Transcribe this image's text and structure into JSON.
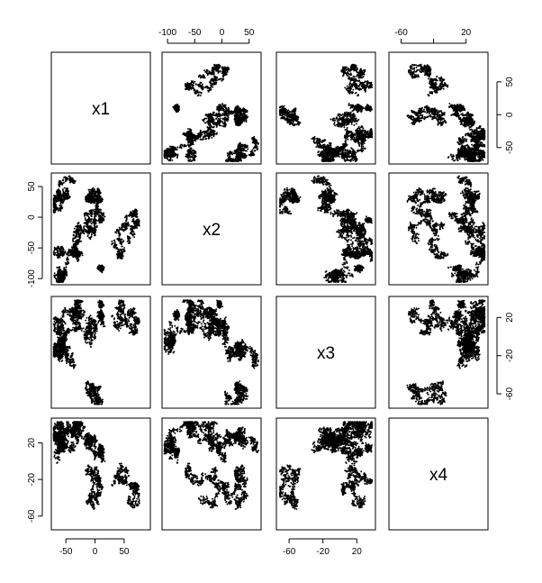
{
  "chart_data": {
    "type": "scatter",
    "subtype": "scatterplot-matrix",
    "variables": [
      "x1",
      "x2",
      "x3",
      "x4"
    ],
    "ranges": {
      "x1": [
        -75,
        95
      ],
      "x2": [
        -110,
        72
      ],
      "x3": [
        -75,
        42
      ],
      "x4": [
        -75,
        47
      ]
    },
    "ticks": {
      "x1": [
        -50,
        0,
        50
      ],
      "x2": [
        -100,
        -50,
        0,
        50
      ],
      "x3": [
        -60,
        -20,
        20
      ],
      "x4": [
        -60,
        -20,
        20
      ]
    },
    "top_axis_ticks": {
      "x2": [
        -100,
        -50,
        0,
        50
      ],
      "x4": [
        -60,
        20
      ]
    },
    "right_axis_ticks": {
      "x1": [
        50,
        0,
        -50
      ],
      "x3": [
        20,
        -20,
        -60
      ]
    },
    "blobs": [
      {
        "x1": 10,
        "x2": -83,
        "x3": 22,
        "x4": 10
      },
      {
        "x1": 10,
        "x2": -5,
        "x3": 34,
        "x4": 14
      }
    ],
    "grid": false,
    "legend": "none"
  }
}
